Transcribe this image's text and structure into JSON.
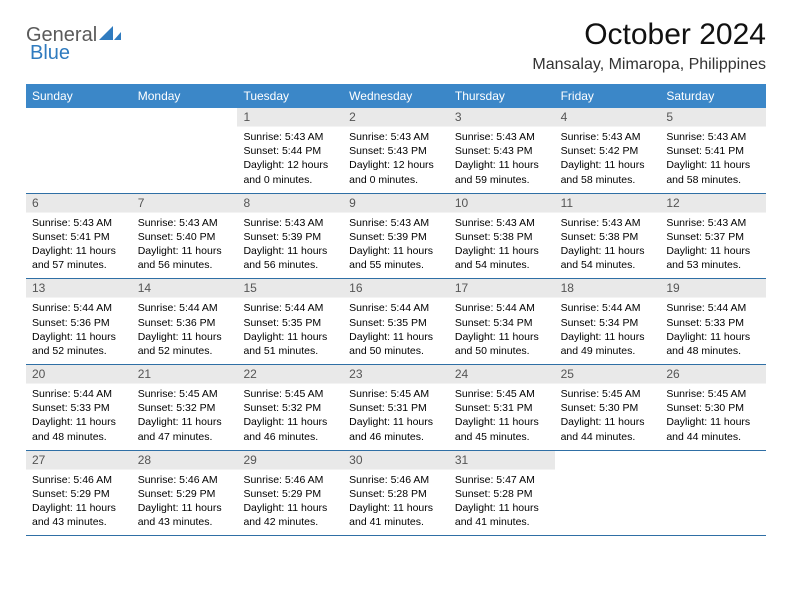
{
  "brand": {
    "part1": "General",
    "part2": "Blue"
  },
  "title": "October 2024",
  "location": "Mansalay, Mimaropa, Philippines",
  "colors": {
    "header_bg": "#3b87c8",
    "daynum_bg": "#e9e9e9",
    "rule": "#2f6fa5"
  },
  "day_headers": [
    "Sunday",
    "Monday",
    "Tuesday",
    "Wednesday",
    "Thursday",
    "Friday",
    "Saturday"
  ],
  "weeks": [
    [
      {
        "n": "",
        "sr": "",
        "ss": "",
        "dl": ""
      },
      {
        "n": "",
        "sr": "",
        "ss": "",
        "dl": ""
      },
      {
        "n": "1",
        "sr": "Sunrise: 5:43 AM",
        "ss": "Sunset: 5:44 PM",
        "dl": "Daylight: 12 hours and 0 minutes."
      },
      {
        "n": "2",
        "sr": "Sunrise: 5:43 AM",
        "ss": "Sunset: 5:43 PM",
        "dl": "Daylight: 12 hours and 0 minutes."
      },
      {
        "n": "3",
        "sr": "Sunrise: 5:43 AM",
        "ss": "Sunset: 5:43 PM",
        "dl": "Daylight: 11 hours and 59 minutes."
      },
      {
        "n": "4",
        "sr": "Sunrise: 5:43 AM",
        "ss": "Sunset: 5:42 PM",
        "dl": "Daylight: 11 hours and 58 minutes."
      },
      {
        "n": "5",
        "sr": "Sunrise: 5:43 AM",
        "ss": "Sunset: 5:41 PM",
        "dl": "Daylight: 11 hours and 58 minutes."
      }
    ],
    [
      {
        "n": "6",
        "sr": "Sunrise: 5:43 AM",
        "ss": "Sunset: 5:41 PM",
        "dl": "Daylight: 11 hours and 57 minutes."
      },
      {
        "n": "7",
        "sr": "Sunrise: 5:43 AM",
        "ss": "Sunset: 5:40 PM",
        "dl": "Daylight: 11 hours and 56 minutes."
      },
      {
        "n": "8",
        "sr": "Sunrise: 5:43 AM",
        "ss": "Sunset: 5:39 PM",
        "dl": "Daylight: 11 hours and 56 minutes."
      },
      {
        "n": "9",
        "sr": "Sunrise: 5:43 AM",
        "ss": "Sunset: 5:39 PM",
        "dl": "Daylight: 11 hours and 55 minutes."
      },
      {
        "n": "10",
        "sr": "Sunrise: 5:43 AM",
        "ss": "Sunset: 5:38 PM",
        "dl": "Daylight: 11 hours and 54 minutes."
      },
      {
        "n": "11",
        "sr": "Sunrise: 5:43 AM",
        "ss": "Sunset: 5:38 PM",
        "dl": "Daylight: 11 hours and 54 minutes."
      },
      {
        "n": "12",
        "sr": "Sunrise: 5:43 AM",
        "ss": "Sunset: 5:37 PM",
        "dl": "Daylight: 11 hours and 53 minutes."
      }
    ],
    [
      {
        "n": "13",
        "sr": "Sunrise: 5:44 AM",
        "ss": "Sunset: 5:36 PM",
        "dl": "Daylight: 11 hours and 52 minutes."
      },
      {
        "n": "14",
        "sr": "Sunrise: 5:44 AM",
        "ss": "Sunset: 5:36 PM",
        "dl": "Daylight: 11 hours and 52 minutes."
      },
      {
        "n": "15",
        "sr": "Sunrise: 5:44 AM",
        "ss": "Sunset: 5:35 PM",
        "dl": "Daylight: 11 hours and 51 minutes."
      },
      {
        "n": "16",
        "sr": "Sunrise: 5:44 AM",
        "ss": "Sunset: 5:35 PM",
        "dl": "Daylight: 11 hours and 50 minutes."
      },
      {
        "n": "17",
        "sr": "Sunrise: 5:44 AM",
        "ss": "Sunset: 5:34 PM",
        "dl": "Daylight: 11 hours and 50 minutes."
      },
      {
        "n": "18",
        "sr": "Sunrise: 5:44 AM",
        "ss": "Sunset: 5:34 PM",
        "dl": "Daylight: 11 hours and 49 minutes."
      },
      {
        "n": "19",
        "sr": "Sunrise: 5:44 AM",
        "ss": "Sunset: 5:33 PM",
        "dl": "Daylight: 11 hours and 48 minutes."
      }
    ],
    [
      {
        "n": "20",
        "sr": "Sunrise: 5:44 AM",
        "ss": "Sunset: 5:33 PM",
        "dl": "Daylight: 11 hours and 48 minutes."
      },
      {
        "n": "21",
        "sr": "Sunrise: 5:45 AM",
        "ss": "Sunset: 5:32 PM",
        "dl": "Daylight: 11 hours and 47 minutes."
      },
      {
        "n": "22",
        "sr": "Sunrise: 5:45 AM",
        "ss": "Sunset: 5:32 PM",
        "dl": "Daylight: 11 hours and 46 minutes."
      },
      {
        "n": "23",
        "sr": "Sunrise: 5:45 AM",
        "ss": "Sunset: 5:31 PM",
        "dl": "Daylight: 11 hours and 46 minutes."
      },
      {
        "n": "24",
        "sr": "Sunrise: 5:45 AM",
        "ss": "Sunset: 5:31 PM",
        "dl": "Daylight: 11 hours and 45 minutes."
      },
      {
        "n": "25",
        "sr": "Sunrise: 5:45 AM",
        "ss": "Sunset: 5:30 PM",
        "dl": "Daylight: 11 hours and 44 minutes."
      },
      {
        "n": "26",
        "sr": "Sunrise: 5:45 AM",
        "ss": "Sunset: 5:30 PM",
        "dl": "Daylight: 11 hours and 44 minutes."
      }
    ],
    [
      {
        "n": "27",
        "sr": "Sunrise: 5:46 AM",
        "ss": "Sunset: 5:29 PM",
        "dl": "Daylight: 11 hours and 43 minutes."
      },
      {
        "n": "28",
        "sr": "Sunrise: 5:46 AM",
        "ss": "Sunset: 5:29 PM",
        "dl": "Daylight: 11 hours and 43 minutes."
      },
      {
        "n": "29",
        "sr": "Sunrise: 5:46 AM",
        "ss": "Sunset: 5:29 PM",
        "dl": "Daylight: 11 hours and 42 minutes."
      },
      {
        "n": "30",
        "sr": "Sunrise: 5:46 AM",
        "ss": "Sunset: 5:28 PM",
        "dl": "Daylight: 11 hours and 41 minutes."
      },
      {
        "n": "31",
        "sr": "Sunrise: 5:47 AM",
        "ss": "Sunset: 5:28 PM",
        "dl": "Daylight: 11 hours and 41 minutes."
      },
      {
        "n": "",
        "sr": "",
        "ss": "",
        "dl": ""
      },
      {
        "n": "",
        "sr": "",
        "ss": "",
        "dl": ""
      }
    ]
  ]
}
